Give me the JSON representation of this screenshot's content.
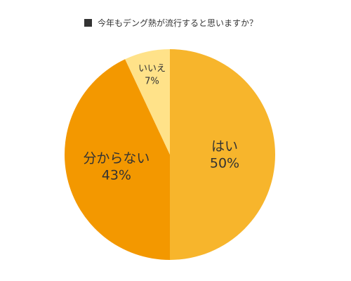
{
  "chart_data": {
    "type": "pie",
    "title": "今年もデング熱が流行すると思いますか？",
    "slices": [
      {
        "label": "はい",
        "value": 50,
        "value_label": "50%",
        "color": "#F7B52C"
      },
      {
        "label": "分からない",
        "value": 43,
        "value_label": "43%",
        "color": "#F39800"
      },
      {
        "label": "いいえ",
        "value": 7,
        "value_label": "7%",
        "color": "#FFE289"
      }
    ],
    "start": "top",
    "direction": "clockwise",
    "legend": "none"
  }
}
